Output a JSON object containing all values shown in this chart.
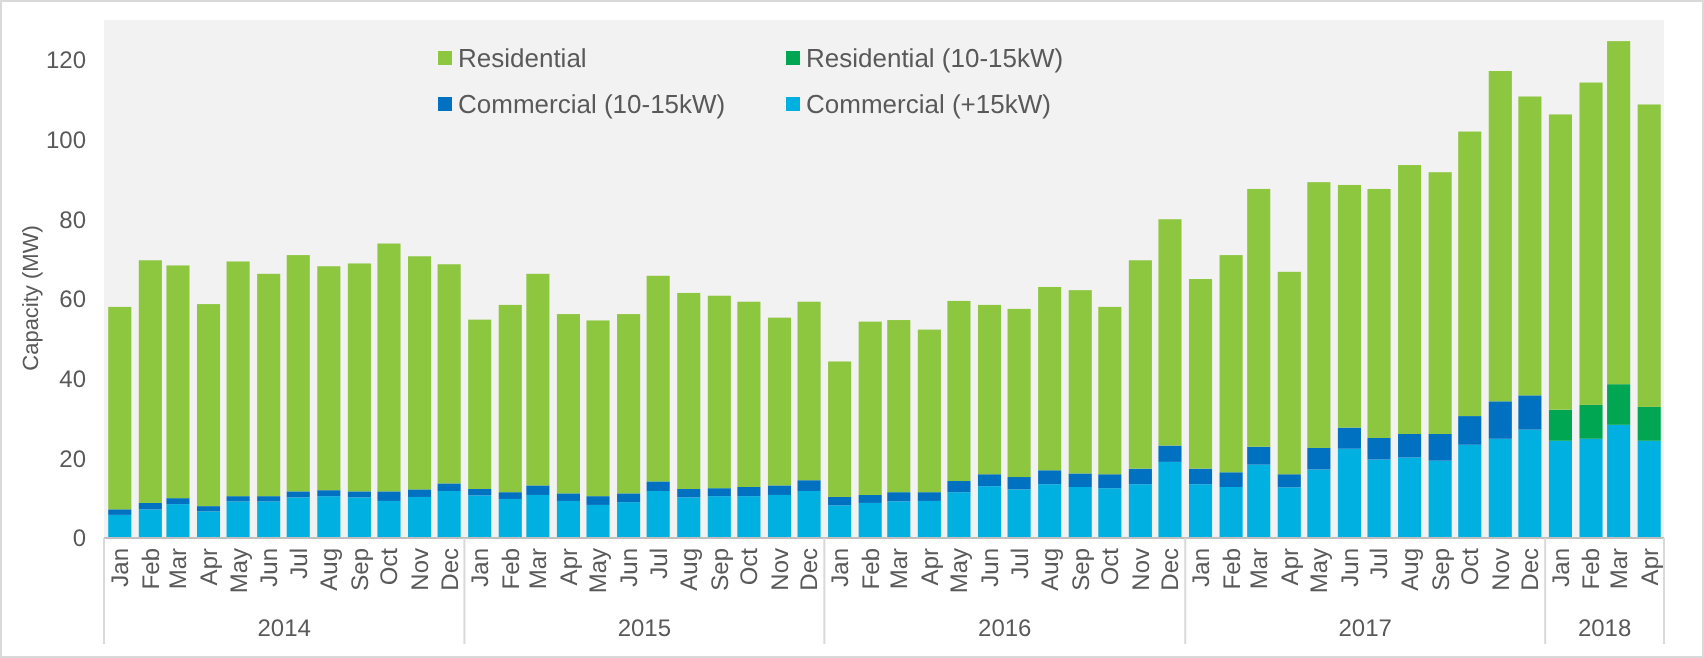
{
  "chart_data": {
    "type": "bar",
    "stacked": true,
    "ylabel": "Capacity (MW)",
    "legend": "top",
    "x": [
      "2014-01",
      "2014-02",
      "2014-03",
      "2014-04",
      "2014-05",
      "2014-06",
      "2014-07",
      "2014-08",
      "2014-09",
      "2014-10",
      "2014-11",
      "2014-12",
      "2015-01",
      "2015-02",
      "2015-03",
      "2015-04",
      "2015-05",
      "2015-06",
      "2015-07",
      "2015-08",
      "2015-09",
      "2015-10",
      "2015-11",
      "2015-12",
      "2016-01",
      "2016-02",
      "2016-03",
      "2016-04",
      "2016-05",
      "2016-06",
      "2016-07",
      "2016-08",
      "2016-09",
      "2016-10",
      "2016-11",
      "2016-12",
      "2017-01",
      "2017-02",
      "2017-03",
      "2017-04",
      "2017-05",
      "2017-06",
      "2017-07",
      "2017-08",
      "2017-09",
      "2017-10",
      "2017-11",
      "2017-12",
      "2018-01",
      "2018-02",
      "2018-03",
      "2018-04"
    ],
    "xlim": [
      "2013-12-16",
      "2018-04-16"
    ],
    "xticks": [
      {
        "value": "2014-01",
        "label": "Jan"
      },
      {
        "value": "2014-02",
        "label": "Feb"
      },
      {
        "value": "2014-03",
        "label": "Mar"
      },
      {
        "value": "2014-04",
        "label": "Apr"
      },
      {
        "value": "2014-05",
        "label": "May"
      },
      {
        "value": "2014-06",
        "label": "Jun"
      },
      {
        "value": "2014-07",
        "label": "Jul"
      },
      {
        "value": "2014-08",
        "label": "Aug"
      },
      {
        "value": "2014-09",
        "label": "Sep"
      },
      {
        "value": "2014-10",
        "label": "Oct"
      },
      {
        "value": "2014-11",
        "label": "Nov"
      },
      {
        "value": "2014-12",
        "label": "Dec"
      },
      {
        "value": "2015-01",
        "label": "Jan"
      },
      {
        "value": "2015-02",
        "label": "Feb"
      },
      {
        "value": "2015-03",
        "label": "Mar"
      },
      {
        "value": "2015-04",
        "label": "Apr"
      },
      {
        "value": "2015-05",
        "label": "May"
      },
      {
        "value": "2015-06",
        "label": "Jun"
      },
      {
        "value": "2015-07",
        "label": "Jul"
      },
      {
        "value": "2015-08",
        "label": "Aug"
      },
      {
        "value": "2015-09",
        "label": "Sep"
      },
      {
        "value": "2015-10",
        "label": "Oct"
      },
      {
        "value": "2015-11",
        "label": "Nov"
      },
      {
        "value": "2015-12",
        "label": "Dec"
      },
      {
        "value": "2016-01",
        "label": "Jan"
      },
      {
        "value": "2016-02",
        "label": "Feb"
      },
      {
        "value": "2016-03",
        "label": "Mar"
      },
      {
        "value": "2016-04",
        "label": "Apr"
      },
      {
        "value": "2016-05",
        "label": "May"
      },
      {
        "value": "2016-06",
        "label": "Jun"
      },
      {
        "value": "2016-07",
        "label": "Jul"
      },
      {
        "value": "2016-08",
        "label": "Aug"
      },
      {
        "value": "2016-09",
        "label": "Sep"
      },
      {
        "value": "2016-10",
        "label": "Oct"
      },
      {
        "value": "2016-11",
        "label": "Nov"
      },
      {
        "value": "2016-12",
        "label": "Dec"
      },
      {
        "value": "2017-01",
        "label": "Jan"
      },
      {
        "value": "2017-02",
        "label": "Feb"
      },
      {
        "value": "2017-03",
        "label": "Mar"
      },
      {
        "value": "2017-04",
        "label": "Apr"
      },
      {
        "value": "2017-05",
        "label": "May"
      },
      {
        "value": "2017-06",
        "label": "Jun"
      },
      {
        "value": "2017-07",
        "label": "Jul"
      },
      {
        "value": "2017-08",
        "label": "Aug"
      },
      {
        "value": "2017-09",
        "label": "Sep"
      },
      {
        "value": "2017-10",
        "label": "Oct"
      },
      {
        "value": "2017-11",
        "label": "Nov"
      },
      {
        "value": "2017-12",
        "label": "Dec"
      },
      {
        "value": "2018-01",
        "label": "Jan"
      },
      {
        "value": "2018-02",
        "label": "Feb"
      },
      {
        "value": "2018-03",
        "label": "Mar"
      },
      {
        "value": "2018-04",
        "label": "Apr"
      }
    ],
    "ylim": [
      0,
      130
    ],
    "yticks": [
      0,
      20,
      40,
      60,
      80,
      100,
      120
    ],
    "series": [
      {
        "name": "Commercial (+15kW)",
        "color": "#00b0e0",
        "values": [
          5.8,
          7.2,
          8.5,
          6.7,
          9.2,
          9.2,
          10.2,
          10.5,
          10.2,
          9.3,
          10.3,
          11.8,
          10.7,
          9.8,
          10.8,
          9.3,
          8.3,
          9.0,
          11.8,
          10.2,
          10.5,
          10.5,
          10.8,
          11.8,
          8.2,
          8.8,
          9.2,
          9.3,
          11.5,
          13.0,
          12.2,
          13.5,
          12.8,
          12.5,
          13.5,
          19.1,
          13.5,
          12.8,
          18.4,
          12.7,
          17.2,
          22.4,
          19.7,
          20.2,
          19.4,
          23.4,
          24.9,
          27.2,
          24.4,
          24.9,
          28.4,
          24.4
        ]
      },
      {
        "name": "Commercial (10-15kW)",
        "color": "#0070c0",
        "values": [
          1.4,
          1.6,
          1.5,
          1.3,
          1.3,
          1.3,
          1.5,
          1.5,
          1.5,
          2.4,
          1.9,
          1.9,
          1.6,
          1.7,
          2.4,
          1.9,
          2.2,
          2.2,
          2.4,
          2.1,
          2.0,
          2.3,
          2.4,
          2.7,
          2.1,
          2.0,
          2.3,
          2.2,
          2.8,
          3.0,
          3.1,
          3.5,
          3.4,
          3.5,
          3.9,
          4.1,
          3.9,
          3.7,
          4.5,
          3.3,
          5.4,
          5.3,
          5.4,
          5.9,
          6.7,
          7.2,
          9.4,
          8.6,
          null,
          null,
          null,
          null
        ]
      },
      {
        "name": "Residential (10-15kW)",
        "color": "#00a651",
        "values": [
          null,
          null,
          null,
          null,
          null,
          null,
          null,
          null,
          null,
          null,
          null,
          null,
          null,
          null,
          null,
          null,
          null,
          null,
          null,
          null,
          null,
          null,
          null,
          null,
          null,
          null,
          null,
          null,
          null,
          null,
          null,
          null,
          null,
          null,
          null,
          null,
          null,
          null,
          null,
          null,
          null,
          null,
          null,
          null,
          null,
          null,
          null,
          null,
          7.8,
          8.5,
          10.2,
          8.5
        ]
      },
      {
        "name": "Residential",
        "color": "#8dc63f",
        "values": [
          50.8,
          60.9,
          58.4,
          50.7,
          58.9,
          55.8,
          59.3,
          56.2,
          57.2,
          62.2,
          58.5,
          55.0,
          42.5,
          47.0,
          53.1,
          45.0,
          44.1,
          45.0,
          51.6,
          49.2,
          48.3,
          46.5,
          42.1,
          44.8,
          34.0,
          43.5,
          43.2,
          40.8,
          45.2,
          42.5,
          42.2,
          46.0,
          46.0,
          42.0,
          52.3,
          56.8,
          47.6,
          54.5,
          64.7,
          50.8,
          66.7,
          60.9,
          62.5,
          67.5,
          65.7,
          71.4,
          82.9,
          75.0,
          74.1,
          80.9,
          86.1,
          75.9
        ]
      }
    ],
    "annotations": [
      "2014",
      "2015",
      "2016",
      "2017",
      "2018"
    ]
  }
}
